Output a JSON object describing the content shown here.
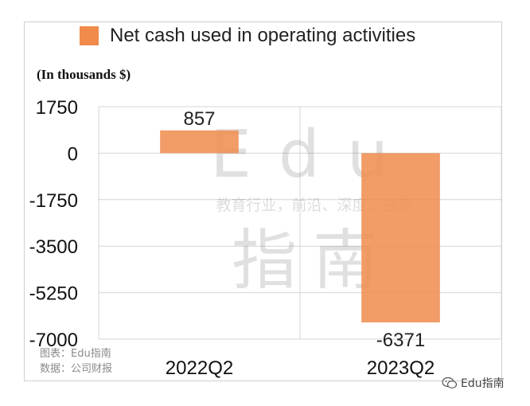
{
  "chart_data": {
    "type": "bar",
    "categories": [
      "2022Q2",
      "2023Q2"
    ],
    "series": [
      {
        "name": "Net cash used in operating activities",
        "values": [
          857,
          -6371
        ],
        "color": "#f08b4c"
      }
    ],
    "data_labels": [
      "857",
      "-6371"
    ],
    "ylabel": "(In thousands $)",
    "ylim": [
      -7000,
      1750
    ],
    "yticks": [
      1750,
      0,
      -1750,
      -3500,
      -5250,
      -7000
    ],
    "grid": true,
    "legend_position": "top"
  },
  "legend": {
    "label": "Net cash used in operating activities"
  },
  "unit_label": "(In thousands $)",
  "watermark": {
    "logo": "Edu",
    "tagline": "教育行业，前沿、深度、独家",
    "name": "指南"
  },
  "footer": {
    "chart_credit": "图表：Edu指南",
    "data_source": "数据：公司财报"
  },
  "brand": {
    "label": "Edu指南"
  }
}
